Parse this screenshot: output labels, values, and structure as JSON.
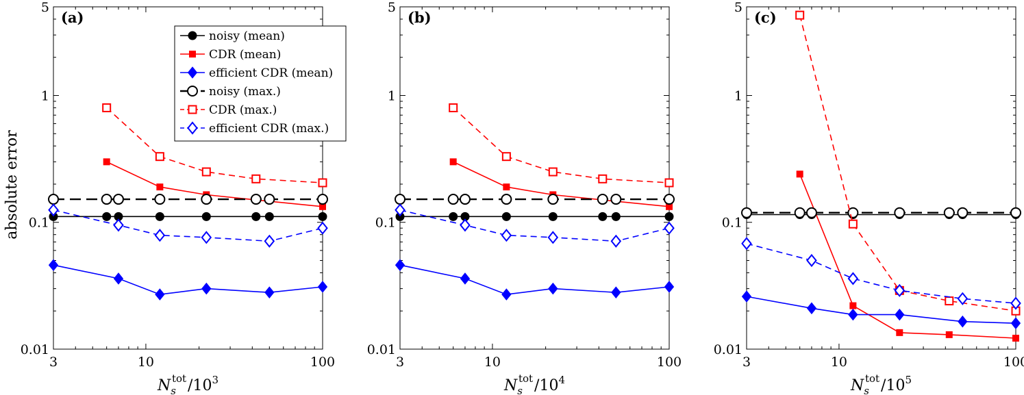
{
  "ylabel": "absolute error",
  "chart_data": [
    {
      "type": "line",
      "panel_label": "(a)",
      "xlabel": {
        "prefix": "N",
        "sub": "s",
        "sup": "tot",
        "divisor": "/10",
        "exp": "3"
      },
      "xscale": "log",
      "yscale": "log",
      "xlim": [
        3,
        100
      ],
      "ylim": [
        0.01,
        5
      ],
      "xticks": [
        3,
        10,
        100
      ],
      "xtick_labels": [
        "3",
        "10",
        "100"
      ],
      "yticks": [
        0.01,
        0.1,
        1,
        5
      ],
      "ytick_labels": [
        "0.01",
        "0.1",
        "1",
        "5"
      ],
      "legend": "top-right",
      "series": [
        {
          "name": "noisy (mean)",
          "color": "#000000",
          "marker": "circle-filled",
          "dash": "solid",
          "x": [
            3,
            6,
            7,
            12,
            22,
            42,
            50,
            100
          ],
          "y": [
            0.111,
            0.111,
            0.111,
            0.111,
            0.111,
            0.111,
            0.111,
            0.111
          ]
        },
        {
          "name": "CDR (mean)",
          "color": "#ff0000",
          "marker": "square-filled",
          "dash": "solid",
          "x": [
            6,
            12,
            22,
            42,
            100
          ],
          "y": [
            0.3,
            0.19,
            0.165,
            0.15,
            0.133
          ]
        },
        {
          "name": "efficient CDR (mean)",
          "color": "#0000ff",
          "marker": "diamond-filled",
          "dash": "solid",
          "x": [
            3,
            7,
            12,
            22,
            50,
            100
          ],
          "y": [
            0.046,
            0.036,
            0.027,
            0.03,
            0.028,
            0.031
          ]
        },
        {
          "name": "noisy (max.)",
          "color": "#000000",
          "marker": "circle-open",
          "dash": "long-dash",
          "x": [
            3,
            6,
            7,
            12,
            22,
            42,
            50,
            100
          ],
          "y": [
            0.152,
            0.152,
            0.152,
            0.152,
            0.152,
            0.152,
            0.152,
            0.152
          ]
        },
        {
          "name": "CDR (max.)",
          "color": "#ff0000",
          "marker": "square-open",
          "dash": "short-dash",
          "x": [
            6,
            12,
            22,
            42,
            100
          ],
          "y": [
            0.8,
            0.33,
            0.25,
            0.22,
            0.205
          ]
        },
        {
          "name": "efficient CDR (max.)",
          "color": "#0000ff",
          "marker": "diamond-open",
          "dash": "short-dash",
          "x": [
            3,
            7,
            12,
            22,
            50,
            100
          ],
          "y": [
            0.125,
            0.095,
            0.079,
            0.076,
            0.071,
            0.09
          ]
        }
      ]
    },
    {
      "type": "line",
      "panel_label": "(b)",
      "xlabel": {
        "prefix": "N",
        "sub": "s",
        "sup": "tot",
        "divisor": "/10",
        "exp": "4"
      },
      "xscale": "log",
      "yscale": "log",
      "xlim": [
        3,
        100
      ],
      "ylim": [
        0.01,
        5
      ],
      "xticks": [
        3,
        10,
        100
      ],
      "xtick_labels": [
        "3",
        "10",
        "100"
      ],
      "yticks": [
        0.01,
        0.1,
        1,
        5
      ],
      "ytick_labels": [
        "0.01",
        "0.1",
        "1",
        "5"
      ],
      "legend": "none",
      "series": [
        {
          "name": "noisy (mean)",
          "color": "#000000",
          "marker": "circle-filled",
          "dash": "solid",
          "x": [
            3,
            6,
            7,
            12,
            22,
            42,
            50,
            100
          ],
          "y": [
            0.111,
            0.111,
            0.111,
            0.111,
            0.111,
            0.111,
            0.111,
            0.111
          ]
        },
        {
          "name": "CDR (mean)",
          "color": "#ff0000",
          "marker": "square-filled",
          "dash": "solid",
          "x": [
            6,
            12,
            22,
            42,
            100
          ],
          "y": [
            0.3,
            0.19,
            0.165,
            0.15,
            0.133
          ]
        },
        {
          "name": "efficient CDR (mean)",
          "color": "#0000ff",
          "marker": "diamond-filled",
          "dash": "solid",
          "x": [
            3,
            7,
            12,
            22,
            50,
            100
          ],
          "y": [
            0.046,
            0.036,
            0.027,
            0.03,
            0.028,
            0.031
          ]
        },
        {
          "name": "noisy (max.)",
          "color": "#000000",
          "marker": "circle-open",
          "dash": "long-dash",
          "x": [
            3,
            6,
            7,
            12,
            22,
            42,
            50,
            100
          ],
          "y": [
            0.152,
            0.152,
            0.152,
            0.152,
            0.152,
            0.152,
            0.152,
            0.152
          ]
        },
        {
          "name": "CDR (max.)",
          "color": "#ff0000",
          "marker": "square-open",
          "dash": "short-dash",
          "x": [
            6,
            12,
            22,
            42,
            100
          ],
          "y": [
            0.8,
            0.33,
            0.25,
            0.22,
            0.205
          ]
        },
        {
          "name": "efficient CDR (max.)",
          "color": "#0000ff",
          "marker": "diamond-open",
          "dash": "short-dash",
          "x": [
            3,
            7,
            12,
            22,
            50,
            100
          ],
          "y": [
            0.125,
            0.095,
            0.079,
            0.076,
            0.071,
            0.09
          ]
        }
      ]
    },
    {
      "type": "line",
      "panel_label": "(c)",
      "xlabel": {
        "prefix": "N",
        "sub": "s",
        "sup": "tot",
        "divisor": "/10",
        "exp": "5"
      },
      "xscale": "log",
      "yscale": "log",
      "xlim": [
        3,
        100
      ],
      "ylim": [
        0.01,
        5
      ],
      "xticks": [
        3,
        10,
        100
      ],
      "xtick_labels": [
        "3",
        "10",
        "100"
      ],
      "yticks": [
        0.01,
        0.1,
        1,
        5
      ],
      "ytick_labels": [
        "0.01",
        "0.1",
        "1",
        "5"
      ],
      "legend": "none",
      "series": [
        {
          "name": "noisy (mean)",
          "color": "#000000",
          "marker": "circle-filled",
          "dash": "solid",
          "x": [
            3,
            6,
            7,
            12,
            22,
            42,
            50,
            100
          ],
          "y": [
            0.115,
            0.115,
            0.115,
            0.115,
            0.115,
            0.115,
            0.115,
            0.115
          ]
        },
        {
          "name": "CDR (mean)",
          "color": "#ff0000",
          "marker": "square-filled",
          "dash": "solid",
          "x": [
            6,
            12,
            22,
            42,
            100
          ],
          "y": [
            0.24,
            0.022,
            0.0135,
            0.013,
            0.0122
          ]
        },
        {
          "name": "efficient CDR (mean)",
          "color": "#0000ff",
          "marker": "diamond-filled",
          "dash": "solid",
          "x": [
            3,
            7,
            12,
            22,
            50,
            100
          ],
          "y": [
            0.026,
            0.021,
            0.0187,
            0.0187,
            0.0165,
            0.016
          ]
        },
        {
          "name": "noisy (max.)",
          "color": "#000000",
          "marker": "circle-open",
          "dash": "long-dash",
          "x": [
            3,
            6,
            7,
            12,
            22,
            42,
            50,
            100
          ],
          "y": [
            0.119,
            0.119,
            0.119,
            0.119,
            0.119,
            0.119,
            0.119,
            0.119
          ]
        },
        {
          "name": "CDR (max.)",
          "color": "#ff0000",
          "marker": "square-open",
          "dash": "short-dash",
          "x": [
            6,
            12,
            22,
            42,
            100
          ],
          "y": [
            4.3,
            0.097,
            0.029,
            0.024,
            0.02
          ]
        },
        {
          "name": "efficient CDR (max.)",
          "color": "#0000ff",
          "marker": "diamond-open",
          "dash": "short-dash",
          "x": [
            3,
            7,
            12,
            22,
            50,
            100
          ],
          "y": [
            0.068,
            0.05,
            0.036,
            0.029,
            0.025,
            0.023
          ]
        }
      ]
    }
  ]
}
